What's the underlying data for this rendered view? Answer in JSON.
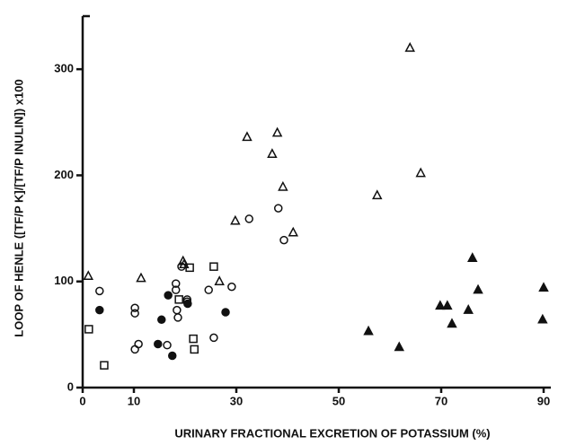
{
  "chart_data": {
    "type": "scatter",
    "x_label": "URINARY FRACTIONAL EXCRETION OF POTASSIUM (%)",
    "y_label": "LOOP OF HENLE ([TF/P K]/[TF/P INULIN]) x100",
    "xlim": [
      0,
      90
    ],
    "xticks": [
      0,
      10,
      30,
      50,
      70,
      90
    ],
    "ylim": [
      0,
      350
    ],
    "yticks": [
      0,
      100,
      200,
      300
    ],
    "series": [
      {
        "marker": "triangle",
        "filled": false,
        "color": "#111111",
        "x": [
          1.1,
          11.4,
          19.6,
          19.8,
          26.7,
          29.8,
          32.1,
          37,
          38,
          39.1,
          41.1,
          57.5,
          63.9,
          66
        ],
        "values": [
          105,
          103,
          119,
          116,
          100,
          157,
          236,
          220,
          240,
          189,
          146,
          181,
          320,
          202
        ]
      },
      {
        "marker": "circle",
        "filled": false,
        "color": "#111111",
        "x": [
          3.3,
          10.2,
          10.2,
          10.9,
          10.2,
          18.2,
          18.2,
          18.6,
          18.4,
          20.4,
          20.4,
          24.6,
          29.1,
          25.6,
          32.5,
          38.2,
          39.3,
          16.5,
          19.3
        ],
        "values": [
          91,
          75,
          70,
          41,
          36,
          98,
          92,
          66,
          73,
          83,
          81,
          92,
          95,
          47,
          159,
          169,
          139,
          40,
          114
        ]
      },
      {
        "marker": "square",
        "filled": false,
        "color": "#111111",
        "x": [
          1.2,
          4.2,
          20.9,
          25.6,
          18.8,
          21.8,
          21.6
        ],
        "values": [
          55,
          21,
          113,
          114,
          83,
          36,
          46
        ]
      },
      {
        "marker": "circle",
        "filled": true,
        "color": "#111111",
        "x": [
          3.3,
          16.7,
          15.4,
          14.7,
          17.5,
          20.5,
          27.9
        ],
        "values": [
          73,
          87,
          64,
          41,
          30,
          79,
          71
        ]
      },
      {
        "marker": "triangle",
        "filled": true,
        "color": "#111111",
        "x": [
          55.8,
          61.8,
          69.8,
          71.2,
          72.1,
          75.3,
          76.1,
          77.2,
          90,
          89.8
        ],
        "values": [
          53,
          38,
          77,
          77,
          60,
          73,
          122,
          92,
          94,
          64
        ]
      }
    ]
  }
}
